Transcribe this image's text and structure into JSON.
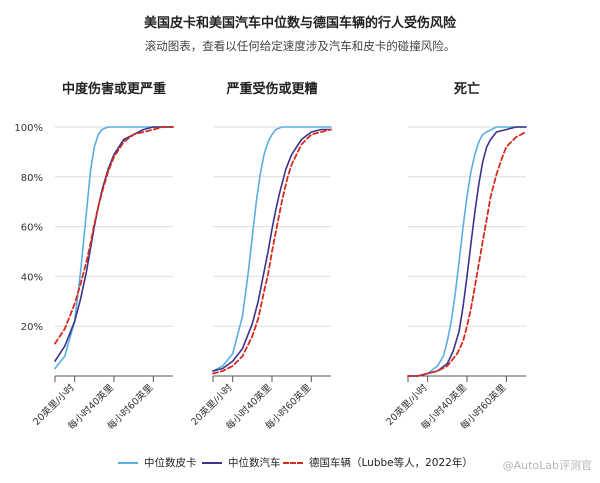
{
  "title": "美国皮卡和美国汽车中位数与德国车辆的行人受伤风险",
  "subtitle": "滚动图表，查看以任何给定速度涉及汽车和皮卡的碰撞风险。",
  "watermark": "@AutoLab评测官",
  "colors": {
    "pickup": "#5aaee0",
    "car": "#3b338a",
    "german": "#d52b1e",
    "grid": "#dddddd",
    "axis": "#555555"
  },
  "chart_data": {
    "type": "line",
    "panels": [
      {
        "title": "中度伤害或更严重",
        "series": [
          {
            "key": "pickup",
            "name": "中位数皮卡",
            "x": [
              10,
              15,
              20,
              23,
              26,
              28,
              30,
              32,
              34,
              37,
              40,
              45,
              50,
              55,
              60,
              65,
              70
            ],
            "y": [
              3,
              8,
              22,
              42,
              66,
              82,
              92,
              97,
              99,
              100,
              100,
              100,
              100,
              100,
              100,
              100,
              100
            ]
          },
          {
            "key": "car",
            "name": "中位数汽车",
            "x": [
              10,
              15,
              20,
              23,
              26,
              28,
              30,
              32,
              34,
              37,
              40,
              45,
              50,
              55,
              60,
              65,
              70
            ],
            "y": [
              6,
              12,
              22,
              31,
              42,
              51,
              60,
              68,
              75,
              83,
              89,
              95,
              97,
              99,
              100,
              100,
              100
            ]
          },
          {
            "key": "german",
            "name": "德国车辆（Lubbe等人，2022年）",
            "x": [
              10,
              15,
              20,
              23,
              26,
              28,
              30,
              32,
              34,
              37,
              40,
              45,
              50,
              55,
              60,
              65,
              70
            ],
            "y": [
              13,
              19,
              29,
              37,
              46,
              53,
              61,
              68,
              74,
              82,
              88,
              94,
              97,
              98,
              99,
              100,
              100
            ]
          }
        ]
      },
      {
        "title": "严重受伤或更糟",
        "series": [
          {
            "key": "pickup",
            "name": "中位数皮卡",
            "x": [
              10,
              15,
              20,
              25,
              28,
              30,
              32,
              34,
              36,
              38,
              40,
              42,
              45,
              50,
              55,
              60,
              70
            ],
            "y": [
              2,
              4,
              9,
              24,
              42,
              56,
              70,
              81,
              89,
              94,
              97,
              99,
              100,
              100,
              100,
              100,
              100
            ]
          },
          {
            "key": "car",
            "name": "中位数汽车",
            "x": [
              10,
              15,
              20,
              25,
              30,
              33,
              36,
              38,
              40,
              42,
              44,
              47,
              50,
              55,
              60,
              65,
              70
            ],
            "y": [
              2,
              3,
              6,
              11,
              21,
              30,
              42,
              50,
              59,
              67,
              74,
              83,
              89,
              95,
              98,
              99,
              99
            ]
          },
          {
            "key": "german",
            "name": "德国车辆（Lubbe等人，2022年）",
            "x": [
              10,
              15,
              20,
              25,
              30,
              33,
              36,
              38,
              40,
              42,
              45,
              48,
              50,
              55,
              60,
              65,
              70
            ],
            "y": [
              1,
              2,
              4,
              8,
              16,
              23,
              34,
              41,
              50,
              58,
              70,
              80,
              85,
              93,
              97,
              98,
              99
            ]
          }
        ]
      },
      {
        "title": "死亡",
        "series": [
          {
            "key": "pickup",
            "name": "中位数皮卡",
            "x": [
              10,
              15,
              20,
              25,
              28,
              30,
              32,
              34,
              36,
              38,
              40,
              42,
              44,
              46,
              48,
              50,
              55,
              60,
              70
            ],
            "y": [
              0,
              0,
              1,
              4,
              8,
              14,
              22,
              33,
              46,
              60,
              72,
              82,
              89,
              94,
              97,
              98,
              100,
              100,
              100
            ]
          },
          {
            "key": "car",
            "name": "中位数汽车",
            "x": [
              10,
              15,
              20,
              25,
              30,
              33,
              36,
              38,
              40,
              42,
              44,
              46,
              48,
              50,
              52,
              55,
              60,
              65,
              70
            ],
            "y": [
              0,
              0,
              1,
              2,
              5,
              10,
              18,
              28,
              40,
              53,
              66,
              77,
              86,
              92,
              95,
              98,
              99,
              100,
              100
            ]
          },
          {
            "key": "german",
            "name": "德国车辆（Lubbe等人，2022年）",
            "x": [
              10,
              15,
              20,
              25,
              30,
              35,
              38,
              40,
              42,
              44,
              46,
              48,
              50,
              52,
              55,
              58,
              60,
              65,
              70
            ],
            "y": [
              0,
              0,
              1,
              2,
              4,
              9,
              14,
              20,
              27,
              36,
              45,
              54,
              63,
              72,
              81,
              88,
              92,
              96,
              98
            ]
          }
        ]
      }
    ],
    "x_ticks": [
      20,
      40,
      60
    ],
    "x_tick_labels": [
      "20英里/小时",
      "每小时40英里",
      "每小时60英里"
    ],
    "xlim": [
      10,
      70
    ],
    "y_ticks": [
      20,
      40,
      60,
      80,
      100
    ],
    "y_tick_labels": [
      "20%",
      "40%",
      "60%",
      "80%",
      "100%"
    ],
    "ylim": [
      0,
      100
    ],
    "legend": [
      {
        "key": "pickup",
        "label": "中位数皮卡"
      },
      {
        "key": "car",
        "label": "中位数汽车"
      },
      {
        "key": "german",
        "label": "德国车辆（Lubbe等人，2022年）"
      }
    ],
    "legend_position": "bottom",
    "grid": true
  }
}
